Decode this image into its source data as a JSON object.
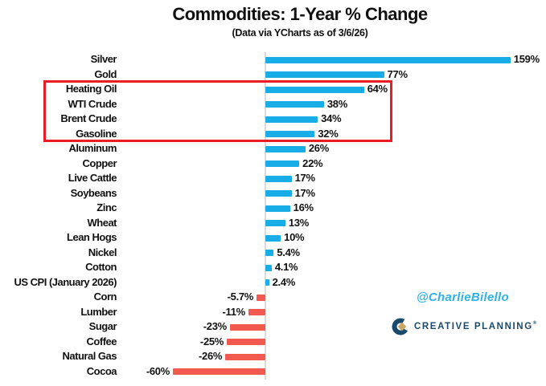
{
  "title": "Commodities: 1-Year % Change",
  "subtitle": "(Data via YCharts as of 3/6/26)",
  "watermark": "@CharlieBilello",
  "brand": {
    "name": "CREATIVE PLANNING",
    "mark": "®"
  },
  "colors": {
    "positive_bar": "#18ADE6",
    "negative_bar": "#F2594F",
    "highlight_box": "#EB1C24",
    "axis_line": "#DCDCDC",
    "watermark_blue": "#2EB2E8",
    "brand_navy": "#1A4A6B",
    "brand_gold": "#C8A566",
    "text": "#111111"
  },
  "chart_data": {
    "type": "bar",
    "orientation": "horizontal",
    "title": "Commodities: 1-Year % Change",
    "subtitle": "(Data via YCharts as of 3/6/26)",
    "xlabel": "",
    "ylabel": "",
    "xlim": [
      -65,
      175
    ],
    "grid": false,
    "legend": "none",
    "value_unit": "%",
    "categories": [
      "Silver",
      "Gold",
      "Heating Oil",
      "WTI Crude",
      "Brent Crude",
      "Gasoline",
      "Aluminum",
      "Copper",
      "Live Cattle",
      "Soybeans",
      "Zinc",
      "Wheat",
      "Lean Hogs",
      "Nickel",
      "Cotton",
      "US CPI (January 2026)",
      "Corn",
      "Lumber",
      "Sugar",
      "Coffee",
      "Natural Gas",
      "Cocoa"
    ],
    "values": [
      159,
      77,
      64,
      38,
      34,
      32,
      26,
      22,
      17,
      17,
      16,
      13,
      10,
      5.4,
      4.1,
      2.4,
      -5.7,
      -11,
      -23,
      -25,
      -26,
      -60
    ],
    "value_labels": [
      "159%",
      "77%",
      "64%",
      "38%",
      "34%",
      "32%",
      "26%",
      "22%",
      "17%",
      "17%",
      "16%",
      "13%",
      "10%",
      "5.4%",
      "4.1%",
      "2.4%",
      "-5.7%",
      "-11%",
      "-23%",
      "-25%",
      "-26%",
      "-60%"
    ],
    "highlighted_categories": [
      "Heating Oil",
      "WTI Crude",
      "Brent Crude",
      "Gasoline"
    ]
  }
}
